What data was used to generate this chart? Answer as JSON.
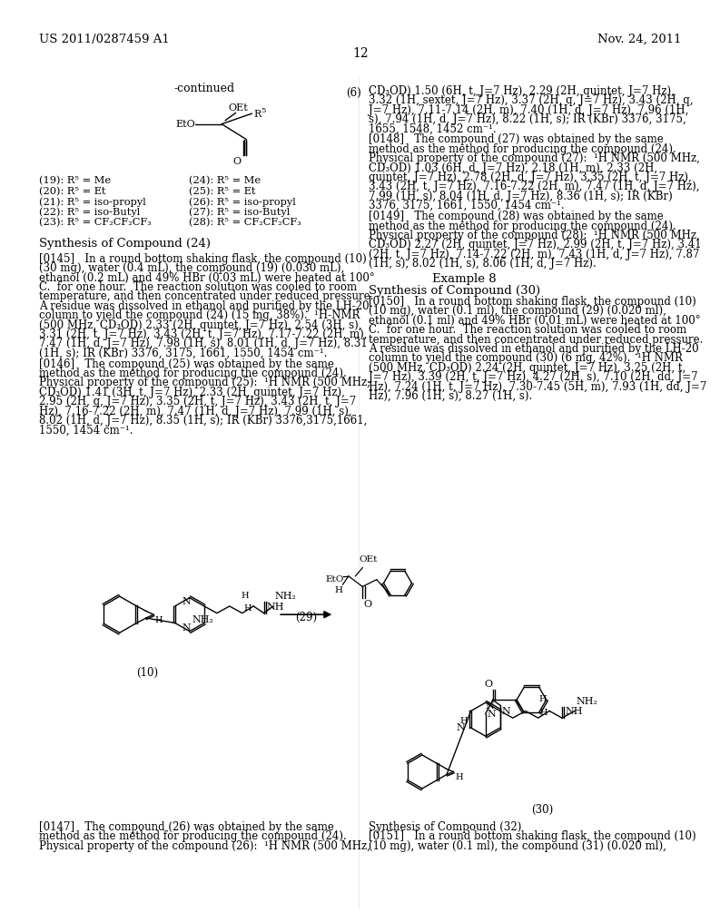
{
  "header_left": "US 2011/0287459 A1",
  "header_right": "Nov. 24, 2011",
  "page_number": "12",
  "background_color": "#ffffff",
  "text_color": "#000000"
}
